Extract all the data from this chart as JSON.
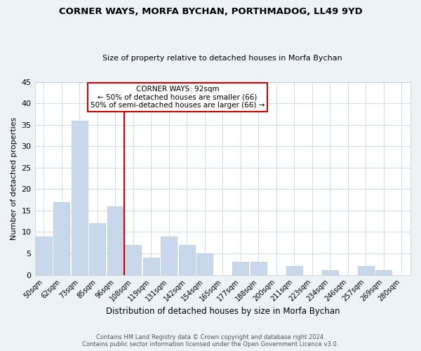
{
  "title": "CORNER WAYS, MORFA BYCHAN, PORTHMADOG, LL49 9YD",
  "subtitle": "Size of property relative to detached houses in Morfa Bychan",
  "xlabel": "Distribution of detached houses by size in Morfa Bychan",
  "ylabel": "Number of detached properties",
  "bar_color": "#c8d8ea",
  "bar_edge_color": "#afc8d8",
  "bin_labels": [
    "50sqm",
    "62sqm",
    "73sqm",
    "85sqm",
    "96sqm",
    "108sqm",
    "119sqm",
    "131sqm",
    "142sqm",
    "154sqm",
    "165sqm",
    "177sqm",
    "188sqm",
    "200sqm",
    "211sqm",
    "223sqm",
    "234sqm",
    "246sqm",
    "257sqm",
    "269sqm",
    "280sqm"
  ],
  "bar_heights": [
    9,
    17,
    36,
    12,
    16,
    7,
    4,
    9,
    7,
    5,
    0,
    3,
    3,
    0,
    2,
    0,
    1,
    0,
    2,
    1,
    0
  ],
  "ylim": [
    0,
    45
  ],
  "yticks": [
    0,
    5,
    10,
    15,
    20,
    25,
    30,
    35,
    40,
    45
  ],
  "vline_x": 4.5,
  "vline_color": "#cc0000",
  "annotation_title": "CORNER WAYS: 92sqm",
  "annotation_line1": "← 50% of detached houses are smaller (66)",
  "annotation_line2": "50% of semi-detached houses are larger (66) →",
  "annotation_box_color": "#ffffff",
  "annotation_box_edge": "#cc0000",
  "footer_line1": "Contains HM Land Registry data © Crown copyright and database right 2024.",
  "footer_line2": "Contains public sector information licensed under the Open Government Licence v3.0.",
  "bg_color": "#edf2f7",
  "plot_bg_color": "#ffffff",
  "grid_color": "#d0dae4"
}
